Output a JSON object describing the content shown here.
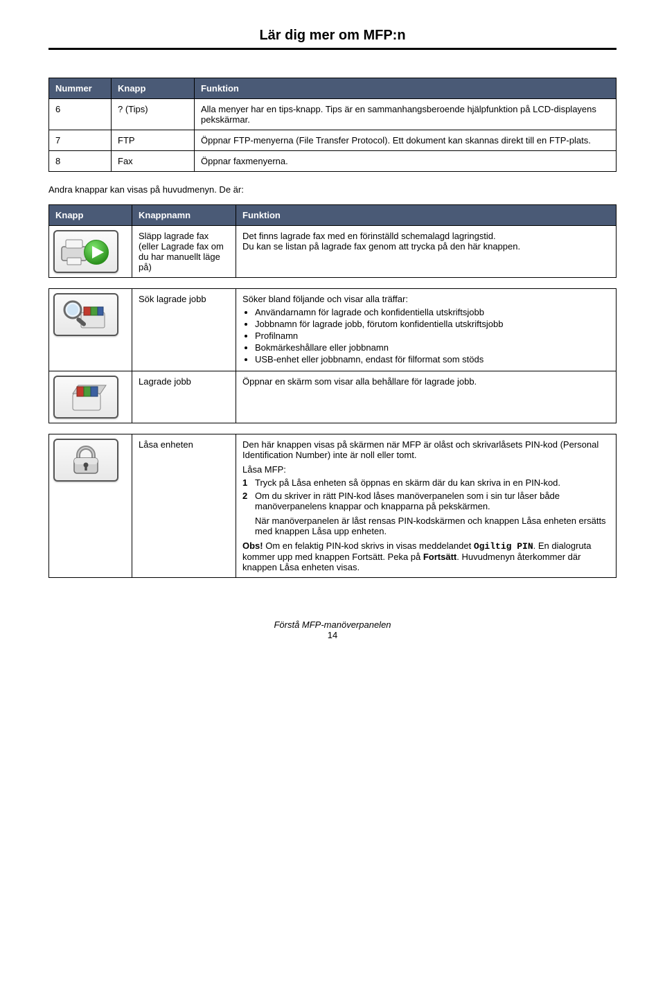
{
  "page": {
    "title": "Lär dig mer om MFP:n",
    "footer_title": "Förstå MFP-manöverpanelen",
    "footer_page": "14"
  },
  "table1": {
    "headers": {
      "c1": "Nummer",
      "c2": "Knapp",
      "c3": "Funktion"
    },
    "rows": [
      {
        "num": "6",
        "knapp": "? (Tips)",
        "funk": "Alla menyer har en tips-knapp. Tips är en sammanhangsberoende hjälpfunktion på LCD-displayens pekskärmar."
      },
      {
        "num": "7",
        "knapp": "FTP",
        "funk": "Öppnar FTP-menyerna (File Transfer Protocol). Ett dokument kan skannas direkt till en FTP-plats."
      },
      {
        "num": "8",
        "knapp": "Fax",
        "funk": "Öppnar faxmenyerna."
      }
    ]
  },
  "between": "Andra knappar kan visas på huvudmenyn. De är:",
  "table2": {
    "headers": {
      "c1": "Knapp",
      "c2": "Knappnamn",
      "c3": "Funktion"
    },
    "row_fax": {
      "name": "Släpp lagrade fax (eller Lagrade fax om du har manuellt läge på)",
      "desc_l1": "Det finns lagrade fax med en förinställd schemalagd lagringstid.",
      "desc_l2": "Du kan se listan på lagrade fax genom att trycka på den här knappen."
    },
    "row_search": {
      "name": "Sök lagrade jobb",
      "desc_intro": "Söker bland följande och visar alla träffar:",
      "bullets": [
        "Användarnamn för lagrade och konfidentiella utskriftsjobb",
        "Jobbnamn för lagrade jobb, förutom konfidentiella utskriftsjobb",
        "Profilnamn",
        "Bokmärkeshållare eller jobbnamn",
        "USB-enhet eller jobbnamn, endast för filformat som stöds"
      ]
    },
    "row_jobs": {
      "name": "Lagrade jobb",
      "desc": "Öppnar en skärm som visar alla behållare för lagrade jobb."
    },
    "row_lock": {
      "name": "Låsa enheten",
      "p1": "Den här knappen visas på skärmen när MFP är olåst och skrivarlåsets PIN-kod (Personal Identification Number) inte är noll eller tomt.",
      "p2": "Låsa MFP:",
      "step1": "Tryck på Låsa enheten så öppnas en skärm där du kan skriva in en PIN-kod.",
      "step2": "Om du skriver in rätt PIN-kod låses manöverpanelen som i sin tur låser både manöverpanelens knappar och knapparna på pekskärmen.",
      "step2b": "När manöverpanelen är låst rensas PIN-kodskärmen och knappen Låsa enheten ersätts med knappen Låsa upp enheten.",
      "obs_label": "Obs!",
      "obs_pre": " Om en felaktig PIN-kod skrivs in visas meddelandet ",
      "obs_code": "Ogiltig PIN",
      "obs_post1": ". En dialogruta kommer upp med knappen Fortsätt. Peka på ",
      "obs_bold": "Fortsätt",
      "obs_post2": ". Huvudmenyn återkommer där knappen Låsa enheten visas."
    }
  },
  "colors": {
    "header_bg": "#4a5a76",
    "green": "#3fbf2e",
    "green_dark": "#2a8f1c",
    "gray": "#8a8a8a",
    "gray_dark": "#5a5a5a",
    "red": "#c23b2e",
    "blue": "#3b5fa0",
    "orange": "#d8862f",
    "green2": "#4a9c3a",
    "lock_body": "#bfbfbf",
    "lock_dark": "#8a8a8a"
  }
}
